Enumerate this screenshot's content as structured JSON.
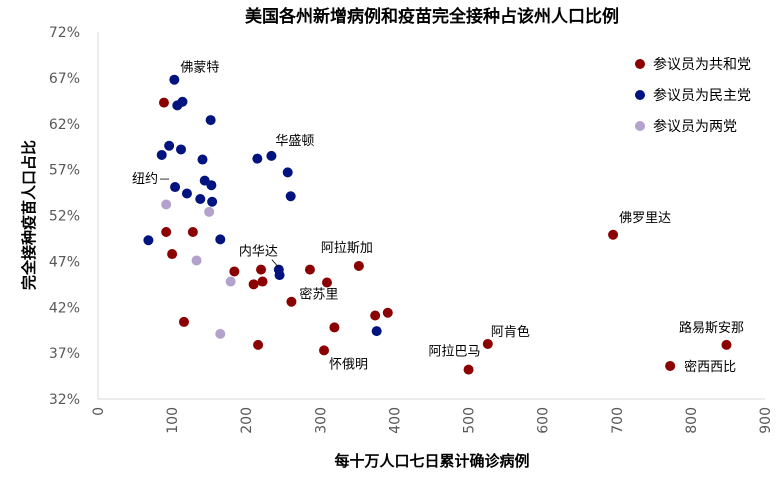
{
  "chart_data": {
    "type": "scatter",
    "title": "美国各州新增病例和疫苗完全接种占该州人口比例",
    "xlabel": "每十万人口七日累计确诊病例",
    "ylabel": "完全接种疫苗人口占比",
    "xlim": [
      0,
      900
    ],
    "ylim": [
      32,
      72
    ],
    "x_ticks": [
      "0",
      "100",
      "200",
      "300",
      "400",
      "500",
      "600",
      "700",
      "800",
      "900"
    ],
    "y_ticks": [
      "32%",
      "37%",
      "42%",
      "47%",
      "52%",
      "57%",
      "62%",
      "67%",
      "72%"
    ],
    "grid": false,
    "legend_position": "top-right",
    "series": [
      {
        "name": "参议员为共和党",
        "color": "#8B0000",
        "points": [
          [
            89,
            64.3
          ],
          [
            92,
            50.2
          ],
          [
            100,
            47.8
          ],
          [
            116,
            40.4
          ],
          [
            128,
            50.2
          ],
          [
            184,
            45.9
          ],
          [
            210,
            44.5
          ],
          [
            216,
            37.9
          ],
          [
            220,
            46.1
          ],
          [
            222,
            44.8
          ],
          [
            261,
            42.6
          ],
          [
            286,
            46.1
          ],
          [
            305,
            37.3
          ],
          [
            309,
            44.7
          ],
          [
            319,
            39.8
          ],
          [
            352,
            46.5
          ],
          [
            374,
            41.1
          ],
          [
            391,
            41.4
          ],
          [
            500,
            35.2
          ],
          [
            526,
            38.0
          ],
          [
            695,
            49.9
          ],
          [
            772,
            35.6
          ],
          [
            848,
            37.9
          ]
        ]
      },
      {
        "name": "参议员为民主党",
        "color": "#00137F",
        "points": [
          [
            68,
            49.3
          ],
          [
            86,
            58.6
          ],
          [
            96,
            59.6
          ],
          [
            103,
            66.8
          ],
          [
            104,
            55.1
          ],
          [
            107,
            64.0
          ],
          [
            112,
            59.2
          ],
          [
            114,
            64.4
          ],
          [
            120,
            54.4
          ],
          [
            138,
            53.8
          ],
          [
            141,
            58.1
          ],
          [
            144,
            55.8
          ],
          [
            152,
            62.4
          ],
          [
            153,
            55.3
          ],
          [
            154,
            53.5
          ],
          [
            165,
            49.4
          ],
          [
            215,
            58.2
          ],
          [
            234,
            58.5
          ],
          [
            244,
            46.1
          ],
          [
            245,
            45.5
          ],
          [
            256,
            56.7
          ],
          [
            260,
            54.1
          ],
          [
            376,
            39.4
          ]
        ]
      },
      {
        "name": "参议员为两党",
        "color": "#B3A2CC",
        "points": [
          [
            92,
            53.2
          ],
          [
            133,
            47.1
          ],
          [
            150,
            52.4
          ],
          [
            165,
            39.1
          ],
          [
            179,
            44.8
          ]
        ]
      }
    ],
    "annotations": [
      {
        "text": "佛蒙特",
        "x": 103,
        "y": 66.8
      },
      {
        "text": "华盛顿",
        "x": 234,
        "y": 58.5
      },
      {
        "text": "纽约",
        "x": 104,
        "y": 55.1
      },
      {
        "text": "内华达",
        "x": 244,
        "y": 46.1
      },
      {
        "text": "阿拉斯加",
        "x": 352,
        "y": 46.5
      },
      {
        "text": "密苏里",
        "x": 261,
        "y": 42.6
      },
      {
        "text": "怀俄明",
        "x": 305,
        "y": 37.3
      },
      {
        "text": "佛罗里达",
        "x": 695,
        "y": 49.9
      },
      {
        "text": "阿肯色",
        "x": 526,
        "y": 38.0
      },
      {
        "text": "阿拉巴马",
        "x": 500,
        "y": 35.2
      },
      {
        "text": "路易斯安那",
        "x": 848,
        "y": 37.9
      },
      {
        "text": "密西西比",
        "x": 772,
        "y": 35.6
      }
    ]
  }
}
